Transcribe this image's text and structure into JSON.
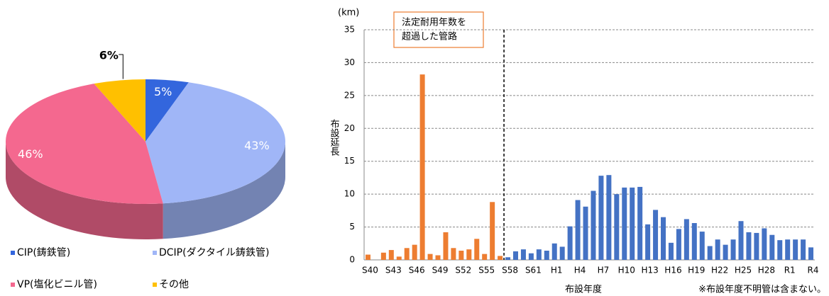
{
  "chart_data": [
    {
      "type": "pie3d",
      "categories": [
        "CIP(鋳鉄管)",
        "DCIP(ダクタイル鋳鉄管)",
        "VP(塩化ビニル管)",
        "その他"
      ],
      "values": [
        5,
        43,
        46,
        6
      ],
      "value_labels": [
        "5%",
        "43%",
        "46%",
        "6%"
      ],
      "colors": [
        "#3366dd",
        "#a0b6f7",
        "#f4688f",
        "#ffc000"
      ]
    },
    {
      "type": "bar",
      "categories": [
        "S40",
        null,
        null,
        "S43",
        null,
        null,
        "S46",
        null,
        null,
        "S49",
        null,
        null,
        "S52",
        null,
        null,
        "S55",
        null,
        null,
        "S58",
        null,
        null,
        "S61",
        null,
        null,
        "H1",
        null,
        null,
        "H4",
        null,
        null,
        "H7",
        null,
        null,
        "H10",
        null,
        null,
        "H13",
        null,
        null,
        "H16",
        null,
        null,
        "H19",
        null,
        null,
        "H22",
        null,
        null,
        "H25",
        null,
        null,
        "H28",
        null,
        null,
        "R1",
        null,
        null,
        "R4"
      ],
      "series": [
        {
          "color": "#ed7d31",
          "values": [
            0.8,
            0,
            1.1,
            1.5,
            0.5,
            1.8,
            2.3,
            28.2,
            0.9,
            0.7,
            4.2,
            1.8,
            1.4,
            1.6,
            3.2,
            0.9,
            8.8,
            0.6,
            null,
            null,
            null,
            null,
            null,
            null,
            null,
            null,
            null,
            null,
            null,
            null,
            null,
            null,
            null,
            null,
            null,
            null,
            null,
            null,
            null,
            null,
            null,
            null,
            null,
            null,
            null,
            null,
            null,
            null,
            null,
            null,
            null,
            null,
            null,
            null,
            null,
            null,
            null,
            null
          ]
        },
        {
          "color": "#4472c4",
          "values": [
            null,
            null,
            null,
            null,
            null,
            null,
            null,
            null,
            null,
            null,
            null,
            null,
            null,
            null,
            null,
            null,
            null,
            null,
            0.4,
            1.3,
            1.6,
            1.0,
            1.6,
            1.4,
            2.5,
            2.0,
            5.1,
            9.1,
            8.1,
            10.5,
            12.8,
            12.9,
            10.0,
            11.0,
            11.0,
            11.1,
            5.4,
            7.6,
            6.5,
            2.6,
            4.7,
            6.2,
            5.6,
            4.3,
            2.1,
            3.1,
            2.3,
            3.1,
            5.9,
            4.2,
            4.1,
            4.8,
            3.8,
            3.0,
            3.1,
            3.1,
            3.1,
            1.9
          ]
        }
      ],
      "ylim": [
        0,
        35
      ],
      "yticks": [
        0,
        5,
        10,
        15,
        20,
        25,
        30,
        35
      ],
      "grid": true,
      "y_unit": "(km)",
      "y_label": "布設延長",
      "x_label": "布設年度",
      "note": "※布設年度不明管は含まない。",
      "annotation": [
        "法定耐用年数を",
        "超過した管路"
      ]
    }
  ]
}
